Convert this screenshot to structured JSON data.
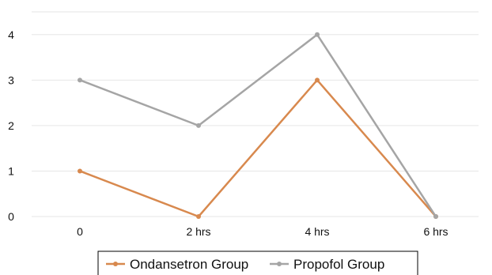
{
  "chart_data": {
    "type": "line",
    "categories": [
      "0",
      "2 hrs",
      "4 hrs",
      "6 hrs"
    ],
    "ylim": [
      0,
      4.5
    ],
    "yticks": [
      "0",
      "1",
      "2",
      "3",
      "4"
    ],
    "grid": true,
    "legend_position": "bottom",
    "series": [
      {
        "name": "Ondansetron Group",
        "values": [
          1,
          0,
          3,
          0
        ],
        "color": "#d8894e"
      },
      {
        "name": "Propofol Group",
        "values": [
          3,
          2,
          4,
          0
        ],
        "color": "#a5a5a5"
      }
    ]
  }
}
